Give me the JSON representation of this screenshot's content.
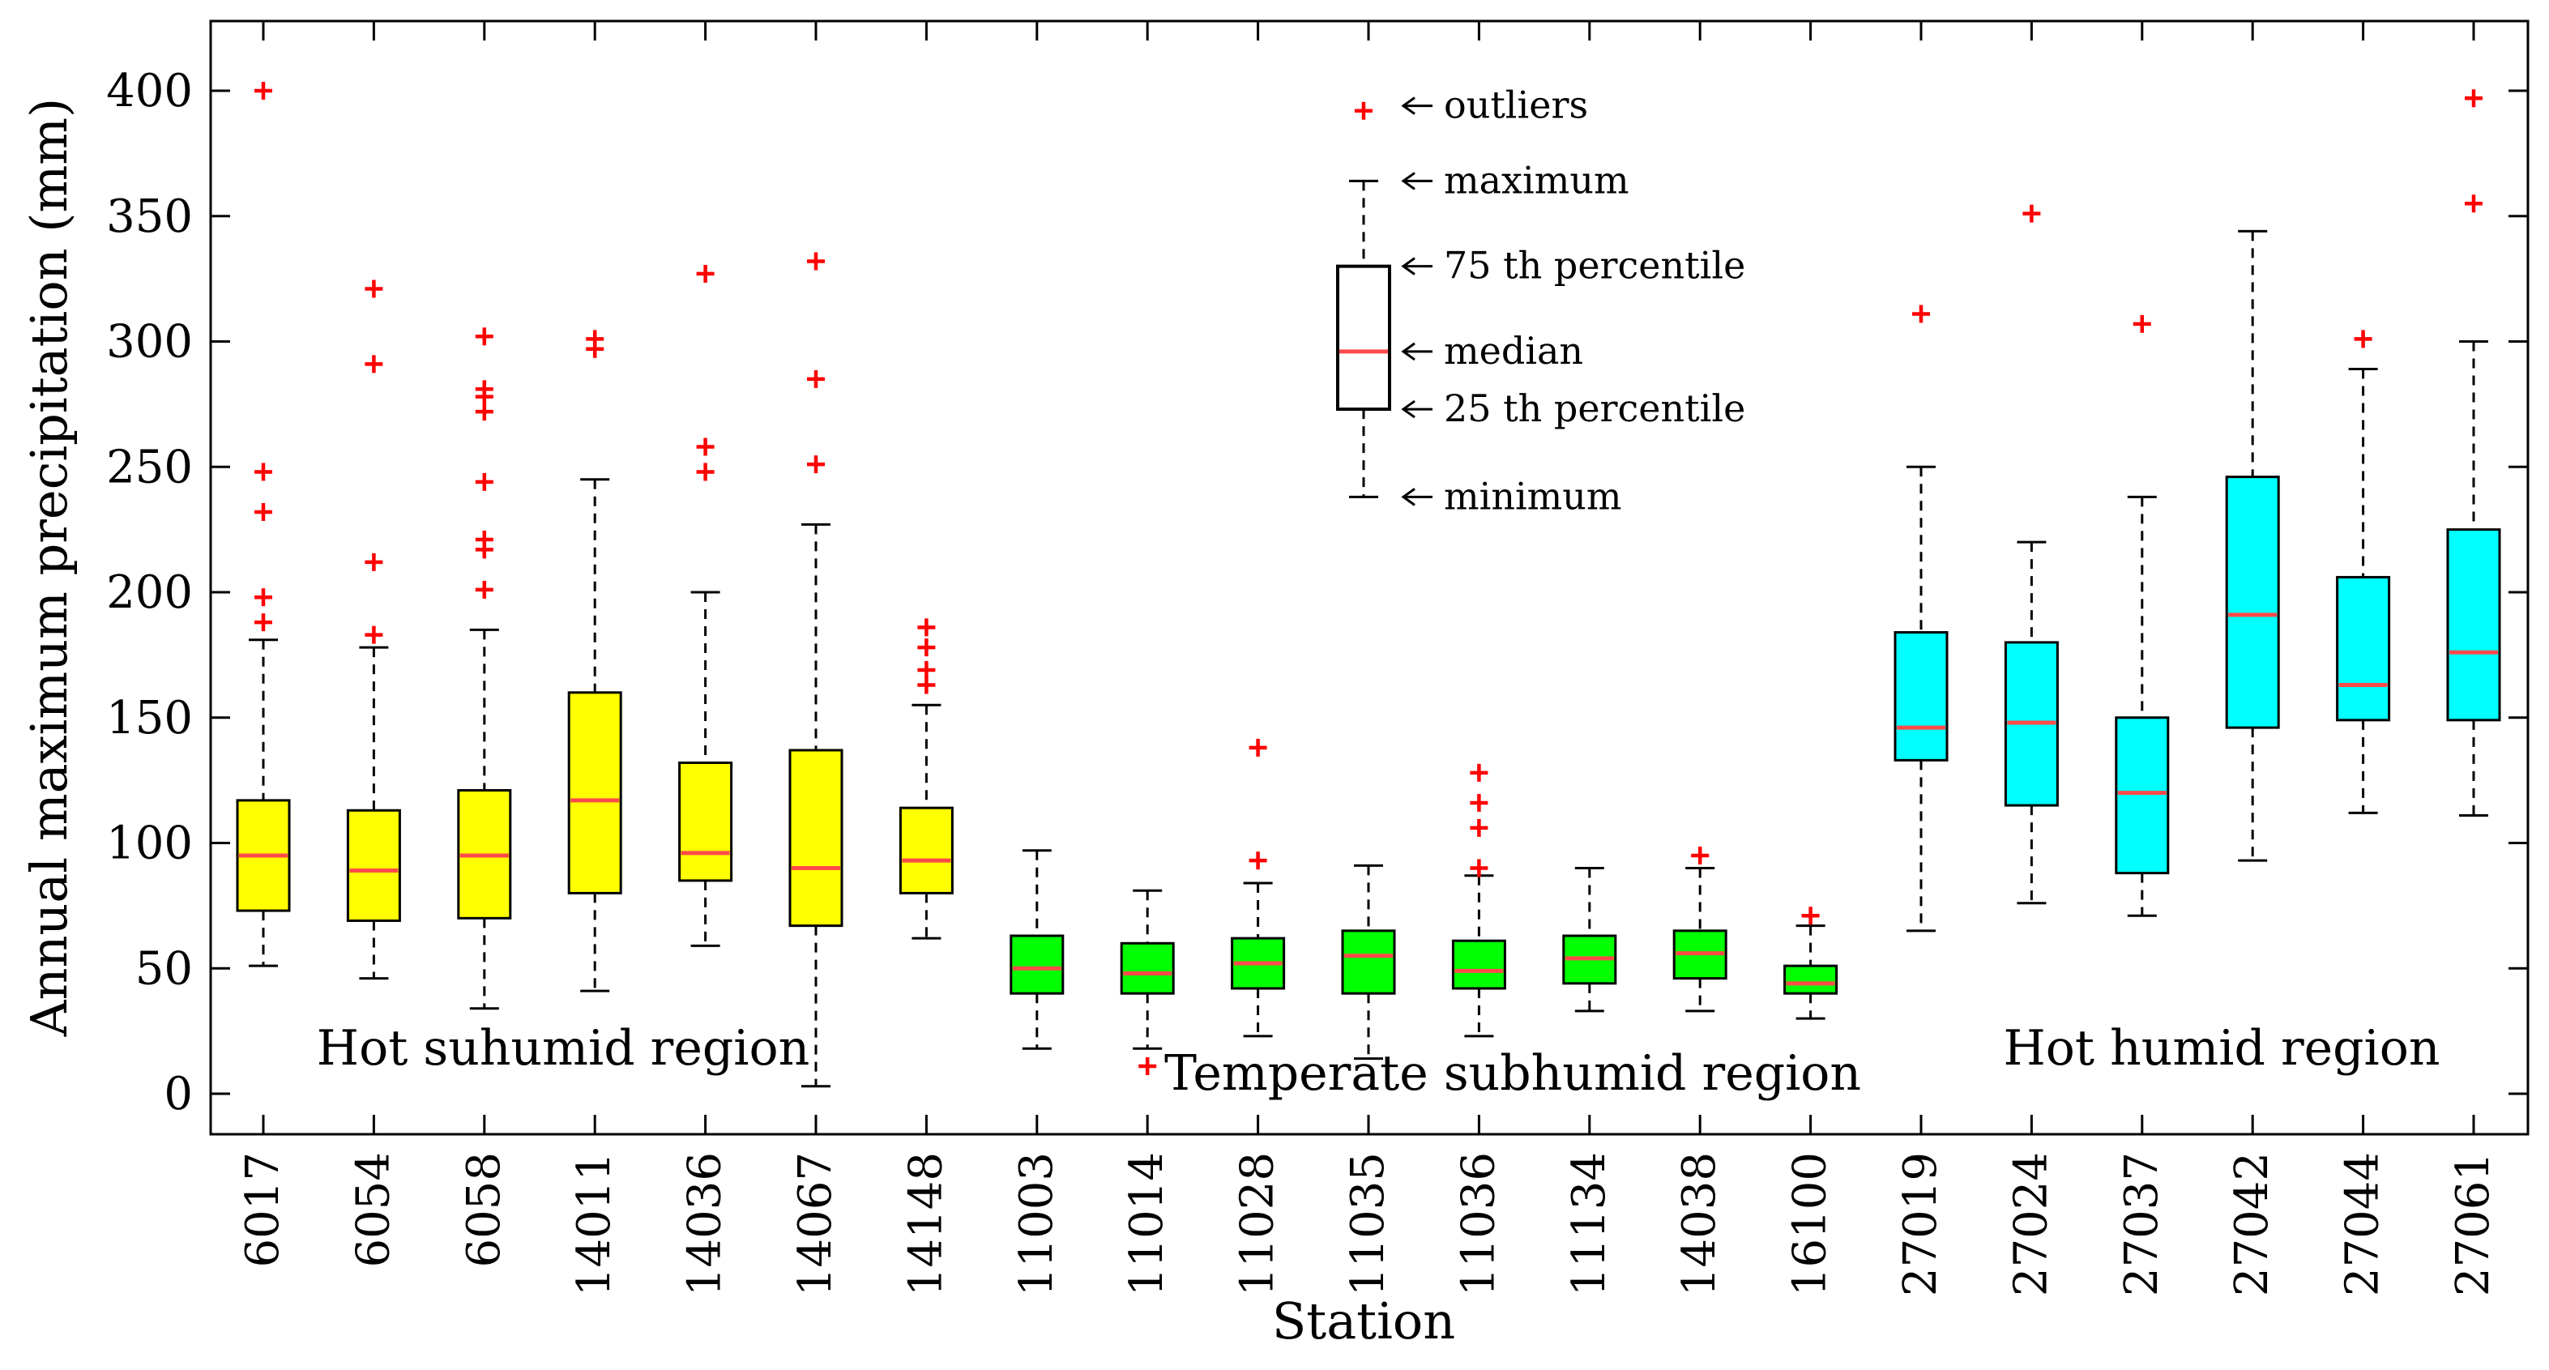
{
  "chart_data": {
    "type": "box",
    "xlabel": "Station",
    "ylabel": "Annual maximum precipitation (mm)",
    "ylim": [
      -17,
      420
    ],
    "yticks": [
      0,
      50,
      100,
      150,
      200,
      250,
      300,
      350,
      400
    ],
    "categories": [
      "6017",
      "6054",
      "6058",
      "14011",
      "14036",
      "14067",
      "14148",
      "11003",
      "11014",
      "11028",
      "11035",
      "11036",
      "11134",
      "14038",
      "16100",
      "27019",
      "27024",
      "27037",
      "27042",
      "27044",
      "27061"
    ],
    "regions": [
      {
        "name": "Hot suhumid region",
        "color": "#ffff00",
        "stations": [
          "6017",
          "6054",
          "6058",
          "14011",
          "14036",
          "14067",
          "14148"
        ]
      },
      {
        "name": "Temperate subhumid region",
        "color": "#00ff00",
        "stations": [
          "11003",
          "11014",
          "11028",
          "11035",
          "11036",
          "11134",
          "14038",
          "16100"
        ]
      },
      {
        "name": "Hot humid region",
        "color": "#00ffff",
        "stations": [
          "27019",
          "27024",
          "27037",
          "27042",
          "27044",
          "27061"
        ]
      }
    ],
    "boxes": [
      {
        "station": "6017",
        "region": 0,
        "min": 51,
        "q1": 73,
        "median": 95,
        "q3": 117,
        "max": 181,
        "outliers": [
          188,
          198,
          232,
          248,
          400
        ]
      },
      {
        "station": "6054",
        "region": 0,
        "min": 46,
        "q1": 69,
        "median": 89,
        "q3": 113,
        "max": 178,
        "outliers": [
          183,
          212,
          291,
          321
        ]
      },
      {
        "station": "6058",
        "region": 0,
        "min": 34,
        "q1": 70,
        "median": 95,
        "q3": 121,
        "max": 185,
        "outliers": [
          201,
          217,
          221,
          244,
          272,
          278,
          281,
          302
        ]
      },
      {
        "station": "14011",
        "region": 0,
        "min": 41,
        "q1": 80,
        "median": 117,
        "q3": 160,
        "max": 245,
        "outliers": [
          297,
          301
        ]
      },
      {
        "station": "14036",
        "region": 0,
        "min": 59,
        "q1": 85,
        "median": 96,
        "q3": 132,
        "max": 200,
        "outliers": [
          248,
          258,
          327
        ]
      },
      {
        "station": "14067",
        "region": 0,
        "min": 3,
        "q1": 67,
        "median": 90,
        "q3": 137,
        "max": 227,
        "outliers": [
          251,
          285,
          332
        ]
      },
      {
        "station": "14148",
        "region": 0,
        "min": 62,
        "q1": 80,
        "median": 93,
        "q3": 114,
        "max": 155,
        "outliers": [
          163,
          169,
          178,
          186
        ]
      },
      {
        "station": "11003",
        "region": 1,
        "min": 18,
        "q1": 40,
        "median": 50,
        "q3": 63,
        "max": 97,
        "outliers": []
      },
      {
        "station": "11014",
        "region": 1,
        "min": 18,
        "q1": 40,
        "median": 48,
        "q3": 60,
        "max": 81,
        "outliers": [
          11
        ]
      },
      {
        "station": "11028",
        "region": 1,
        "min": 23,
        "q1": 42,
        "median": 52,
        "q3": 62,
        "max": 84,
        "outliers": [
          93,
          138
        ]
      },
      {
        "station": "11035",
        "region": 1,
        "min": 14,
        "q1": 40,
        "median": 55,
        "q3": 65,
        "max": 91,
        "outliers": []
      },
      {
        "station": "11036",
        "region": 1,
        "min": 23,
        "q1": 42,
        "median": 49,
        "q3": 61,
        "max": 87,
        "outliers": [
          90,
          106,
          116,
          128
        ]
      },
      {
        "station": "11134",
        "region": 1,
        "min": 33,
        "q1": 44,
        "median": 54,
        "q3": 63,
        "max": 90,
        "outliers": []
      },
      {
        "station": "14038",
        "region": 1,
        "min": 33,
        "q1": 46,
        "median": 56,
        "q3": 65,
        "max": 90,
        "outliers": [
          95
        ]
      },
      {
        "station": "16100",
        "region": 1,
        "min": 30,
        "q1": 40,
        "median": 44,
        "q3": 51,
        "max": 67,
        "outliers": [
          71
        ]
      },
      {
        "station": "27019",
        "region": 2,
        "min": 65,
        "q1": 133,
        "median": 146,
        "q3": 184,
        "max": 250,
        "outliers": [
          311
        ]
      },
      {
        "station": "27024",
        "region": 2,
        "min": 76,
        "q1": 115,
        "median": 148,
        "q3": 180,
        "max": 220,
        "outliers": [
          351
        ]
      },
      {
        "station": "27037",
        "region": 2,
        "min": 71,
        "q1": 88,
        "median": 120,
        "q3": 150,
        "max": 238,
        "outliers": [
          307
        ]
      },
      {
        "station": "27042",
        "region": 2,
        "min": 93,
        "q1": 146,
        "median": 191,
        "q3": 246,
        "max": 344,
        "outliers": []
      },
      {
        "station": "27044",
        "region": 2,
        "min": 112,
        "q1": 149,
        "median": 163,
        "q3": 206,
        "max": 289,
        "outliers": [
          301
        ]
      },
      {
        "station": "27061",
        "region": 2,
        "min": 111,
        "q1": 149,
        "median": 176,
        "q3": 225,
        "max": 300,
        "outliers": [
          355,
          397
        ]
      }
    ],
    "legend": {
      "placement": "top-center",
      "example": {
        "min": 238,
        "q1": 273,
        "median": 296,
        "q3": 330,
        "max": 364,
        "outlier": 392
      },
      "labels": {
        "outliers": "outliers",
        "maximum": "maximum",
        "q3": "75 th percentile",
        "median": "median",
        "q1": "25 th percentile",
        "minimum": "minimum"
      }
    },
    "colors": {
      "median": "#ff4a4a",
      "outlier": "#ff0000",
      "whisker": "#000000"
    }
  }
}
